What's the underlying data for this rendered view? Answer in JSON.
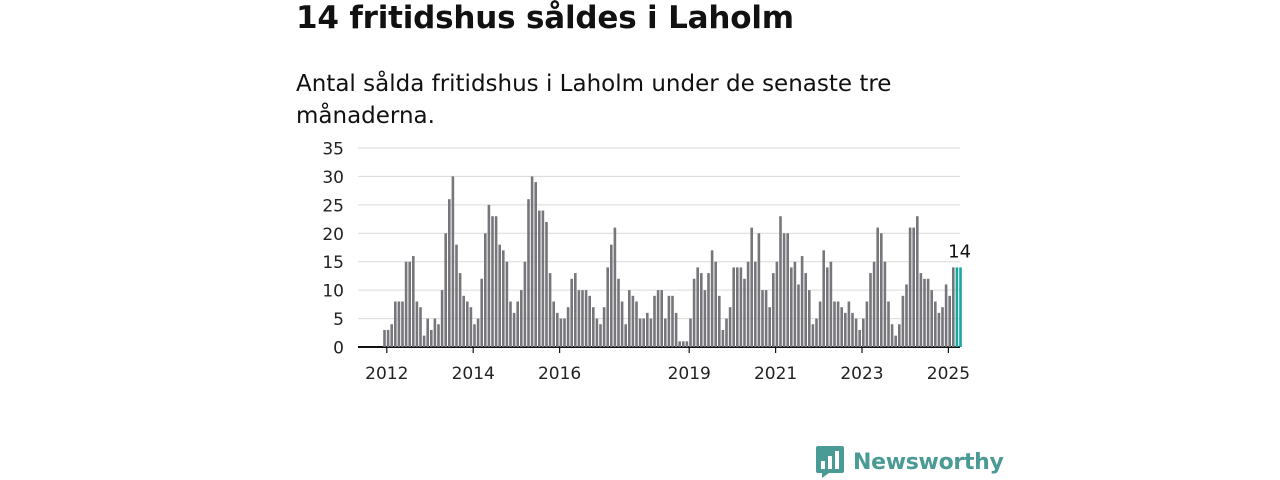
{
  "title": "14 fritidshus såldes i Laholm",
  "subtitle": "Antal sålda fritidshus i Laholm under de senaste tre månaderna.",
  "brand": {
    "name": "Newsworthy",
    "icon": "newsworthy-logo-icon"
  },
  "colors": {
    "bar": "#76767b",
    "highlight": "#1aa6a0",
    "brand": "#4a9a95",
    "grid": "#d9d9d9",
    "axis": "#111111"
  },
  "chart_data": {
    "type": "bar",
    "ylim": [
      0,
      35
    ],
    "yticks": [
      0,
      5,
      10,
      15,
      20,
      25,
      30,
      35
    ],
    "xtick_labels": [
      {
        "label": "2012",
        "year": 2012
      },
      {
        "label": "2014",
        "year": 2014
      },
      {
        "label": "2016",
        "year": 2016
      },
      {
        "label": "2019",
        "year": 2019
      },
      {
        "label": "2021",
        "year": 2021
      },
      {
        "label": "2023",
        "year": 2023
      },
      {
        "label": "2025",
        "year": 2025
      }
    ],
    "x_start": "2011-05",
    "frequency": "monthly",
    "grid": true,
    "values": [
      0,
      0,
      0,
      0,
      0,
      0,
      0,
      3,
      3,
      4,
      8,
      8,
      8,
      15,
      15,
      16,
      8,
      7,
      2,
      5,
      3,
      5,
      4,
      10,
      20,
      26,
      30,
      18,
      13,
      9,
      8,
      7,
      4,
      5,
      12,
      20,
      25,
      23,
      23,
      18,
      17,
      15,
      8,
      6,
      8,
      10,
      15,
      26,
      30,
      29,
      24,
      24,
      22,
      13,
      8,
      6,
      5,
      5,
      7,
      12,
      13,
      10,
      10,
      10,
      9,
      7,
      5,
      4,
      7,
      14,
      18,
      21,
      12,
      8,
      4,
      10,
      9,
      8,
      5,
      5,
      6,
      5,
      9,
      10,
      10,
      5,
      9,
      9,
      6,
      1,
      1,
      1,
      5,
      12,
      14,
      13,
      10,
      13,
      17,
      15,
      9,
      3,
      5,
      7,
      14,
      14,
      14,
      12,
      15,
      21,
      15,
      20,
      10,
      10,
      7,
      13,
      15,
      23,
      20,
      20,
      14,
      15,
      11,
      16,
      13,
      10,
      4,
      5,
      8,
      17,
      14,
      15,
      8,
      8,
      7,
      6,
      8,
      6,
      5,
      3,
      5,
      8,
      13,
      15,
      21,
      20,
      15,
      8,
      4,
      2,
      4,
      9,
      11,
      21,
      21,
      23,
      13,
      12,
      12,
      10,
      8,
      6,
      7,
      11,
      9,
      14,
      14
    ],
    "highlight": [
      {
        "index": 166,
        "value": 14,
        "label": "14"
      },
      {
        "index": 167,
        "value": 14
      }
    ]
  }
}
